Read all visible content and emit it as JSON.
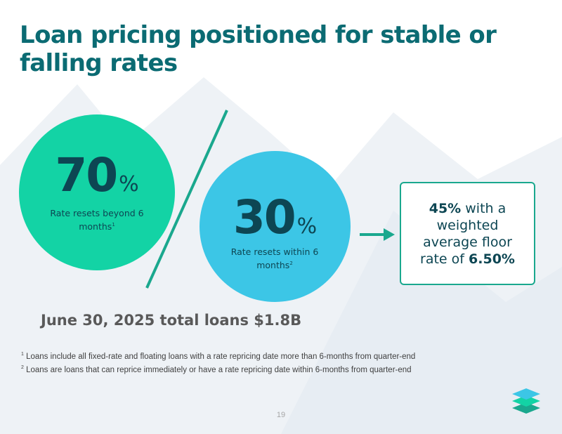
{
  "title": {
    "line1": "Loan pricing positioned for stable or",
    "line2": "falling rates"
  },
  "stat_beyond": {
    "value": "70",
    "unit": "%",
    "label": "Rate resets beyond 6 months",
    "footnote_ref": "1"
  },
  "stat_within": {
    "value": "30",
    "unit": "%",
    "label": "Rate resets within 6 months",
    "footnote_ref": "2"
  },
  "floor_box": {
    "pct": "45%",
    "text1": " with a weighted average floor rate of ",
    "rate": "6.50%"
  },
  "total_loans": "June 30, 2025 total loans $1.8B",
  "footnotes": [
    {
      "num": "1",
      "text": " Loans include all fixed-rate and floating loans with a rate repricing date more than 6-months from quarter-end"
    },
    {
      "num": "2",
      "text": " Loans are loans that can reprice immediately or have a rate repricing date within 6-months from quarter-end"
    }
  ],
  "page_number": "19",
  "colors": {
    "title": "#0b6b73",
    "green": "#13d3a5",
    "blue": "#3cc6e6",
    "text_dark": "#0d4653",
    "accent": "#1aa88e"
  }
}
